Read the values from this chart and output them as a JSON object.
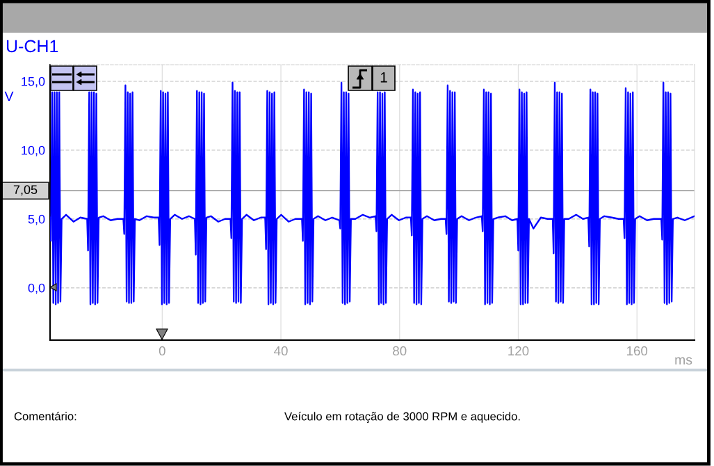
{
  "chart_data": {
    "type": "line",
    "title": "U-CH1",
    "xlabel": "ms",
    "ylabel": "V",
    "xlim": [
      -37.8,
      179.4
    ],
    "xticks": [
      0,
      40,
      80,
      120,
      160
    ],
    "ylim": [
      -3.8,
      16.2
    ],
    "yticks": [
      {
        "value": 0,
        "label": "0,0"
      },
      {
        "value": 5,
        "label": "5,0"
      },
      {
        "value": 10,
        "label": "10,0"
      },
      {
        "value": 15,
        "label": "15,0"
      }
    ],
    "grid": true,
    "ref_lines": [
      {
        "axis": "y",
        "value": 7.05,
        "label": "7,05",
        "color": "#a0a0a0"
      }
    ],
    "annotations": [
      "1",
      "Comentário:",
      "Veículo em rotação de 3000 RPM e aquecido."
    ],
    "series": [
      {
        "color": "#0000ff",
        "x": [
          -37.8,
          -37.5,
          -37.1,
          -36.7,
          -36.3,
          -35.9,
          -35.5,
          -35.1,
          -34.7,
          -34.3,
          -33.9,
          -32.4,
          -29.9,
          -27.6,
          -25.3,
          -25.0,
          -24.6,
          -24.2,
          -23.8,
          -23.4,
          -23.0,
          -22.6,
          -22.2,
          -21.8,
          -21.4,
          -19.9,
          -17.4,
          -15.1,
          -13.1,
          -12.8,
          -12.4,
          -12.0,
          -11.6,
          -11.2,
          -10.8,
          -10.4,
          -10.0,
          -9.6,
          -9.2,
          -7.7,
          -5.2,
          -2.9,
          -1.2,
          -0.9,
          -0.5,
          -0.1,
          0.3,
          0.7,
          1.1,
          1.5,
          1.9,
          2.3,
          2.7,
          4.2,
          6.7,
          9.0,
          11.0,
          11.3,
          11.7,
          12.1,
          12.5,
          12.9,
          13.3,
          13.7,
          14.1,
          14.5,
          14.9,
          16.4,
          18.9,
          21.2,
          23.0,
          23.3,
          23.7,
          24.1,
          24.5,
          24.9,
          25.3,
          25.7,
          26.1,
          26.5,
          26.9,
          28.4,
          30.9,
          33.2,
          34.7,
          35.0,
          35.4,
          35.8,
          36.2,
          36.6,
          37.0,
          37.4,
          37.8,
          38.2,
          38.6,
          40.1,
          42.6,
          44.9,
          47.1,
          47.4,
          47.8,
          48.2,
          48.6,
          49.0,
          49.4,
          49.8,
          50.2,
          50.6,
          51.0,
          52.5,
          55.0,
          57.3,
          59.7,
          60.0,
          60.4,
          60.8,
          61.2,
          61.6,
          62.0,
          62.4,
          62.8,
          63.2,
          63.6,
          65.1,
          67.6,
          69.9,
          71.9,
          72.2,
          72.6,
          73.0,
          73.4,
          73.8,
          74.2,
          74.6,
          75.0,
          75.4,
          75.8,
          77.3,
          79.8,
          82.1,
          83.8,
          84.1,
          84.5,
          84.9,
          85.3,
          85.7,
          86.1,
          86.5,
          86.9,
          87.3,
          87.7,
          89.2,
          91.7,
          94.0,
          95.5,
          95.8,
          96.2,
          96.6,
          97.0,
          97.4,
          97.8,
          98.2,
          98.6,
          99.0,
          99.4,
          100.9,
          103.4,
          105.7,
          107.7,
          108.0,
          108.4,
          108.8,
          109.2,
          109.6,
          110.0,
          110.4,
          110.8,
          111.2,
          111.6,
          113.1,
          115.6,
          117.9,
          119.7,
          120.0,
          120.4,
          120.8,
          121.2,
          121.6,
          122.0,
          122.4,
          122.8,
          123.2,
          123.6,
          125.1,
          127.6,
          129.9,
          131.6,
          131.9,
          132.3,
          132.7,
          133.1,
          133.5,
          133.9,
          134.3,
          134.7,
          135.1,
          135.5,
          137.0,
          139.5,
          141.8,
          143.6,
          143.9,
          144.3,
          144.7,
          145.1,
          145.5,
          145.9,
          146.3,
          146.7,
          147.1,
          147.5,
          149.0,
          151.5,
          153.8,
          155.5,
          155.8,
          156.2,
          156.6,
          157.0,
          157.4,
          157.8,
          158.2,
          158.6,
          159.0,
          159.4,
          160.9,
          163.4,
          165.7,
          168.2,
          168.5,
          168.9,
          169.3,
          169.7,
          170.1,
          170.5,
          170.9,
          171.3,
          171.7,
          172.1,
          173.6,
          176.1,
          179.4
        ],
        "values": [
          5.1,
          3.4,
          14.2,
          -1.1,
          14.2,
          -1.2,
          14.2,
          -1.1,
          14.2,
          -1.0,
          5.0,
          5.3,
          4.8,
          5.1,
          5.0,
          2.7,
          14.2,
          -1.2,
          14.2,
          -1.1,
          14.2,
          -1.2,
          14.1,
          -1.1,
          5.1,
          5.2,
          4.9,
          5.0,
          5.0,
          3.9,
          14.7,
          -1.0,
          14.2,
          -1.1,
          14.1,
          -1.1,
          14.2,
          -1.0,
          5.0,
          4.9,
          5.2,
          5.1,
          5.1,
          3.1,
          14.3,
          -1.2,
          14.2,
          -1.1,
          14.1,
          -1.2,
          14.2,
          -1.1,
          5.0,
          5.3,
          5.0,
          5.2,
          5.0,
          2.4,
          14.3,
          -1.1,
          14.2,
          -1.2,
          14.2,
          -1.1,
          14.1,
          -1.0,
          5.1,
          5.2,
          4.8,
          5.0,
          5.0,
          3.6,
          14.9,
          -1.0,
          14.3,
          -1.1,
          14.2,
          -1.0,
          14.2,
          -1.1,
          5.0,
          5.3,
          4.9,
          5.1,
          5.1,
          2.8,
          14.3,
          -1.2,
          14.2,
          -1.1,
          14.1,
          -1.2,
          14.2,
          -1.1,
          5.0,
          5.3,
          4.8,
          5.0,
          5.0,
          3.4,
          14.4,
          -1.2,
          14.2,
          -1.1,
          14.2,
          -1.2,
          14.1,
          -1.0,
          5.0,
          5.2,
          4.9,
          5.1,
          4.9,
          4.3,
          14.9,
          -1.1,
          14.2,
          -1.2,
          14.2,
          -1.1,
          14.1,
          -1.0,
          5.0,
          5.0,
          5.3,
          5.1,
          5.2,
          4.1,
          14.2,
          -1.2,
          14.2,
          -1.1,
          14.1,
          -1.2,
          14.2,
          -1.1,
          5.0,
          5.3,
          4.9,
          5.1,
          5.1,
          3.8,
          14.4,
          -1.1,
          14.2,
          -1.2,
          14.1,
          -1.1,
          14.2,
          -1.2,
          5.0,
          5.2,
          4.9,
          5.0,
          5.0,
          3.9,
          14.7,
          -1.0,
          14.3,
          -1.1,
          14.2,
          -1.0,
          14.2,
          -1.1,
          5.0,
          5.2,
          4.9,
          5.1,
          5.2,
          4.1,
          14.4,
          -1.2,
          14.2,
          -1.1,
          14.2,
          -1.2,
          14.1,
          -1.1,
          5.0,
          5.1,
          5.2,
          4.9,
          5.0,
          2.7,
          14.4,
          -1.2,
          14.2,
          -1.2,
          14.1,
          -1.1,
          14.2,
          -1.1,
          5.0,
          4.3,
          5.1,
          5.0,
          5.0,
          2.5,
          14.9,
          -1.0,
          14.2,
          -1.1,
          14.2,
          -1.0,
          14.1,
          -1.1,
          5.0,
          5.0,
          5.3,
          5.0,
          5.1,
          3.0,
          14.4,
          -1.2,
          14.2,
          -1.2,
          14.2,
          -1.1,
          14.1,
          -1.2,
          5.0,
          5.2,
          5.1,
          5.0,
          5.0,
          3.6,
          14.5,
          -1.2,
          14.2,
          -1.1,
          14.1,
          -1.2,
          14.2,
          -1.1,
          5.0,
          5.2,
          4.9,
          5.0,
          5.0,
          3.5,
          14.9,
          -1.1,
          14.2,
          -1.2,
          14.2,
          -1.1,
          14.1,
          -1.0,
          5.0,
          5.1,
          4.9,
          5.2
        ]
      }
    ]
  }
}
